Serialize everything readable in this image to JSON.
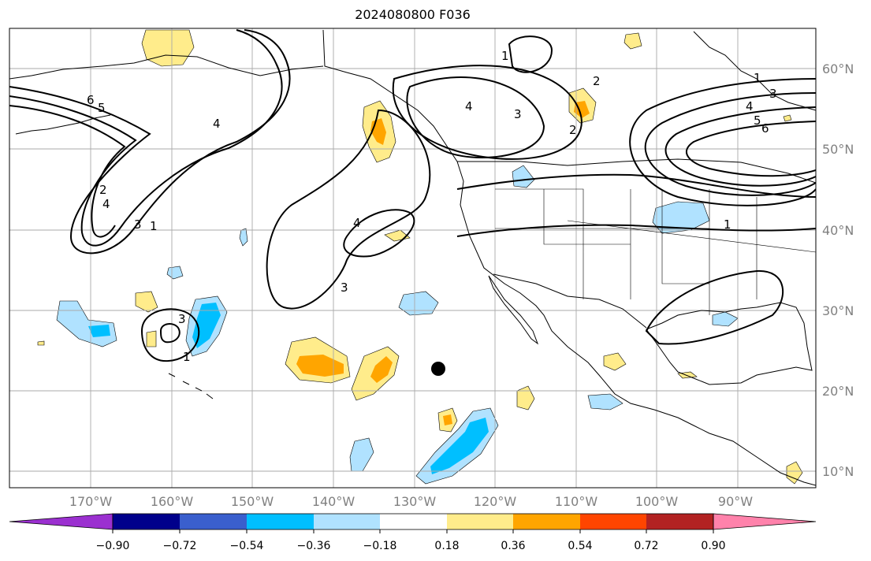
{
  "title": "2024080800 F036",
  "map": {
    "projection": "equirectangular",
    "lon_range": [
      -180,
      -80
    ],
    "lat_range": [
      8,
      65
    ],
    "grid_lons": [
      -170,
      -160,
      -150,
      -140,
      -130,
      -120,
      -110,
      -100,
      -90
    ],
    "grid_lats": [
      10,
      20,
      30,
      40,
      50,
      60
    ],
    "lon_labels": [
      "170°W",
      "160°W",
      "150°W",
      "140°W",
      "130°W",
      "120°W",
      "110°W",
      "100°W",
      "90°W"
    ],
    "lat_labels": [
      "10°N",
      "20°N",
      "30°N",
      "40°N",
      "50°N",
      "60°N"
    ],
    "marker": {
      "name": "black-dot",
      "lon": -127.5,
      "lat": 22.8
    }
  },
  "contour_labels": [
    "6",
    "5",
    "4",
    "2",
    "4",
    "3",
    "1",
    "4",
    "3",
    "4",
    "3",
    "2",
    "2",
    "1",
    "1",
    "3",
    "4",
    "5",
    "6",
    "1",
    "3",
    "1"
  ],
  "colorbar": {
    "ticks": [
      "−0.90",
      "−0.72",
      "−0.54",
      "−0.36",
      "−0.18",
      "0.18",
      "0.36",
      "0.54",
      "0.72",
      "0.90"
    ],
    "colors": [
      "#9b30d0",
      "#00008b",
      "#3a5fcd",
      "#00bfff",
      "#b0e2ff",
      "#ffffff",
      "#ffec8b",
      "#ffa500",
      "#ff4500",
      "#b22222",
      "#ff82ab"
    ]
  }
}
